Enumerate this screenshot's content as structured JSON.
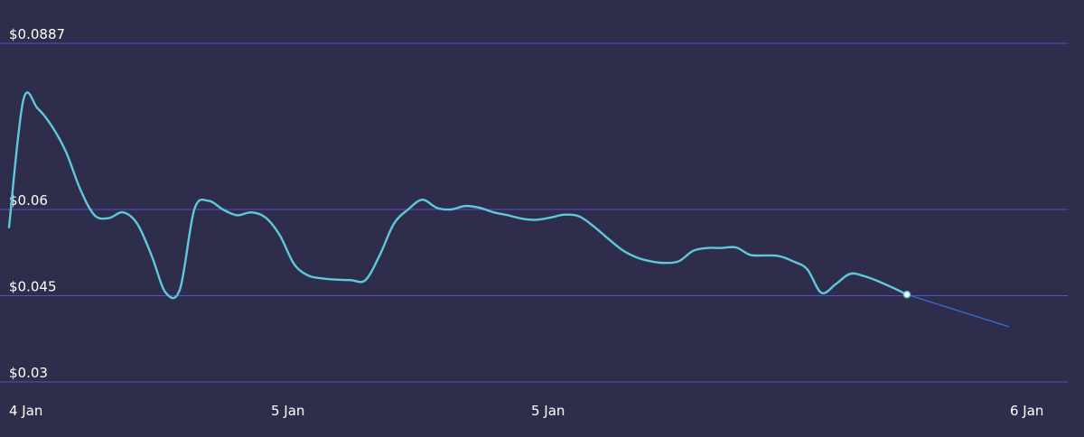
{
  "chart_data": {
    "type": "line",
    "y_ticks": [
      "$0.0887",
      "$0.06",
      "$0.045",
      "$0.03"
    ],
    "y_tick_values": [
      0.0887,
      0.06,
      0.045,
      0.03
    ],
    "x_ticks": [
      "4 Jan",
      "5 Jan",
      "5 Jan",
      "6 Jan"
    ],
    "ylim": [
      0.03,
      0.0887
    ],
    "grid": true,
    "colors": {
      "background": "#2e2e4c",
      "grid": "#5b4fc9",
      "price_line": "#5ec8dc",
      "forecast_line": "#3b6fd6",
      "label": "#ffffff"
    },
    "series": [
      {
        "values": [
          0.0569,
          0.079,
          0.0776,
          0.0745,
          0.07,
          0.0635,
          0.059,
          0.0585,
          0.0595,
          0.0575,
          0.052,
          0.0455,
          0.0462,
          0.06,
          0.0615,
          0.06,
          0.059,
          0.0595,
          0.0586,
          0.0555,
          0.0505,
          0.0485,
          0.048,
          0.0478,
          0.0477,
          0.0477,
          0.052,
          0.0575,
          0.06,
          0.0617,
          0.0603,
          0.06,
          0.0606,
          0.0603,
          0.0595,
          0.059,
          0.0584,
          0.0582,
          0.0586,
          0.0591,
          0.0588,
          0.0571,
          0.055,
          0.053,
          0.0517,
          0.051,
          0.0507,
          0.051,
          0.0528,
          0.0533,
          0.0533,
          0.0534,
          0.0521,
          0.052,
          0.0519,
          0.051,
          0.0496,
          0.0455,
          0.047,
          0.0488,
          0.0484,
          0.0475,
          0.0464,
          0.0452
        ]
      },
      {
        "values": [
          0.0452,
          0.0396
        ]
      }
    ]
  }
}
